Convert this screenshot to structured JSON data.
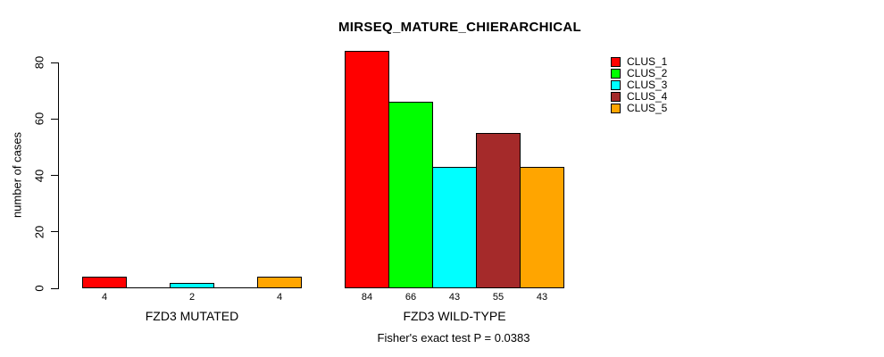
{
  "figure": {
    "title": "MIRSEQ_MATURE_CHIERARCHICAL",
    "caption": "Fisher's exact test P = 0.0383"
  },
  "chart_data": {
    "type": "bar",
    "title": "MIRSEQ_MATURE_CHIERARCHICAL",
    "xlabel": "",
    "ylabel": "number of cases",
    "ylim": [
      0,
      80
    ],
    "yticks": [
      0,
      20,
      40,
      60,
      80
    ],
    "grid": false,
    "legend_position": "right-inside",
    "categories": [
      "FZD3 MUTATED",
      "FZD3 WILD-TYPE"
    ],
    "series": [
      {
        "name": "CLUS_1",
        "color": "#FF0000",
        "values": [
          4,
          84
        ]
      },
      {
        "name": "CLUS_2",
        "color": "#00FF00",
        "values": [
          0,
          66
        ]
      },
      {
        "name": "CLUS_3",
        "color": "#00FFFF",
        "values": [
          2,
          43
        ]
      },
      {
        "name": "CLUS_4",
        "color": "#A52A2A",
        "values": [
          0,
          55
        ]
      },
      {
        "name": "CLUS_5",
        "color": "#FFA500",
        "values": [
          4,
          43
        ]
      }
    ],
    "bar_value_labels": {
      "FZD3 MUTATED": [
        4,
        null,
        2,
        null,
        4
      ],
      "FZD3 WILD-TYPE": [
        84,
        66,
        43,
        55,
        43
      ]
    },
    "annotation": "Fisher's exact test P = 0.0383"
  }
}
